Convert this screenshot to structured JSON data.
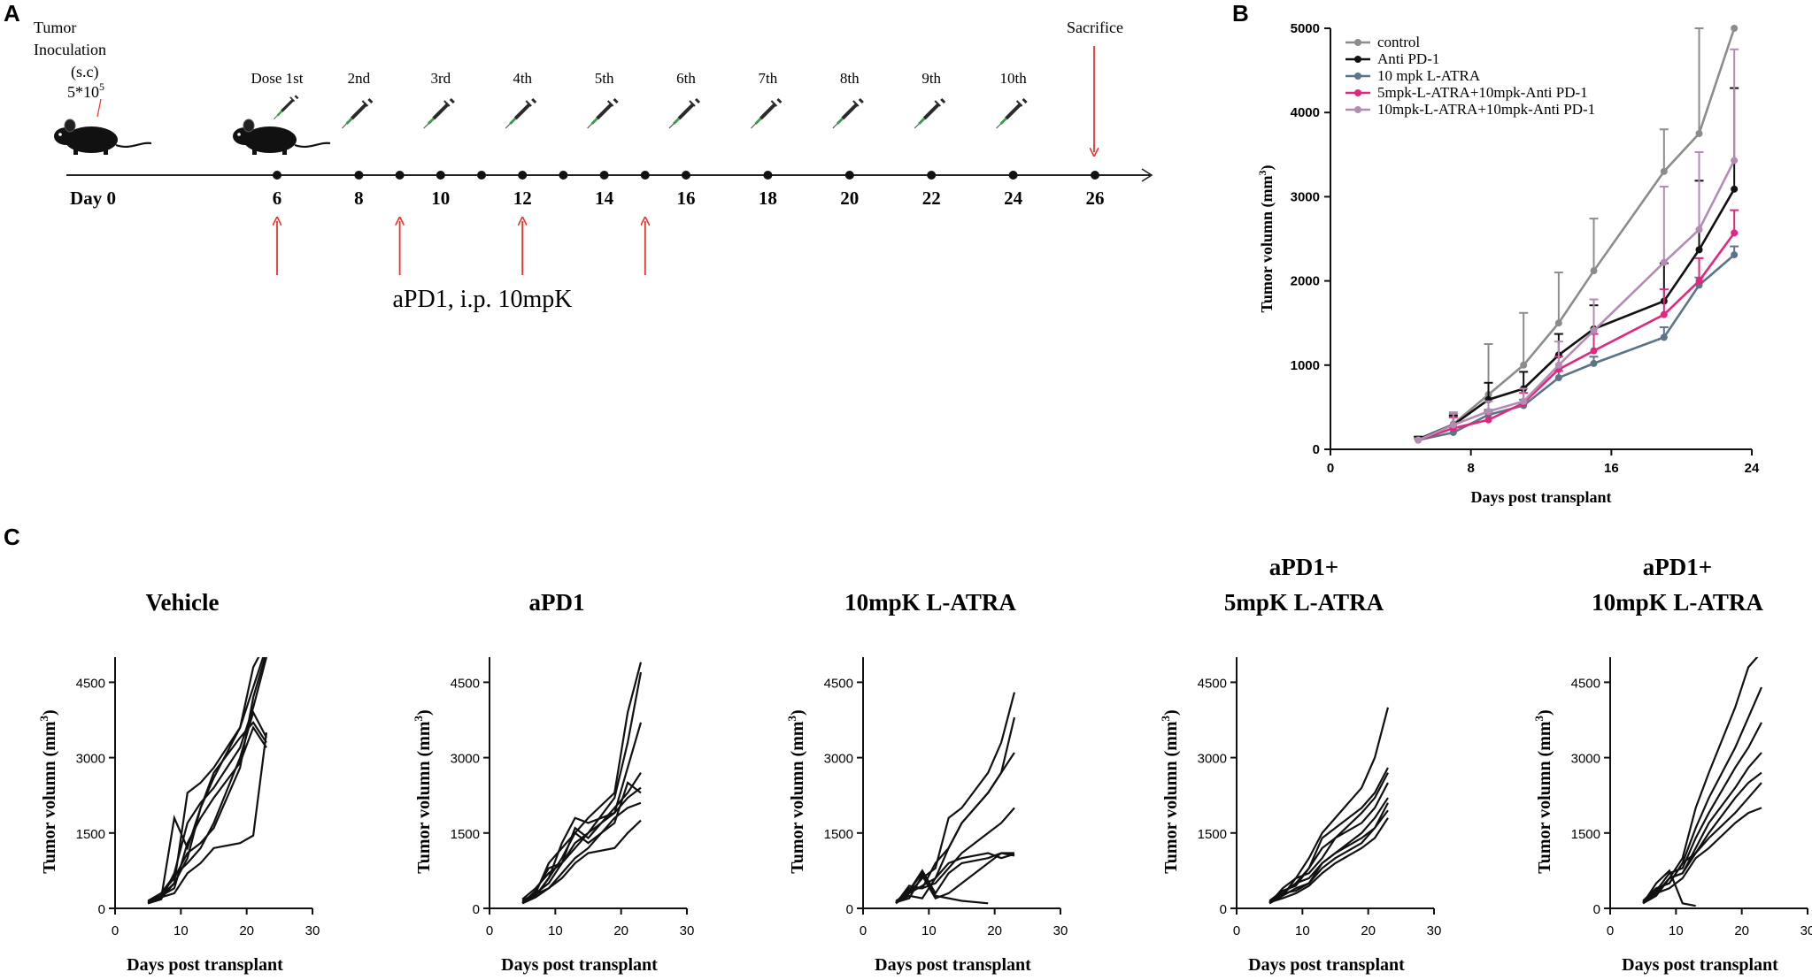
{
  "panel_a": {
    "letter": "A",
    "inoculation": {
      "line1": "Tumor",
      "line2": "Inoculation",
      "line3": "(s.c)",
      "cells": "5*10",
      "cells_exp": "5"
    },
    "sacrifice": "Sacrifice",
    "day0_label": "Day 0",
    "doses": [
      {
        "label": "Dose 1st",
        "day": 6
      },
      {
        "label": "2nd",
        "day": 8
      },
      {
        "label": "3rd",
        "day": 10
      },
      {
        "label": "4th",
        "day": 12
      },
      {
        "label": "5th",
        "day": 14
      },
      {
        "label": "6th",
        "day": 16
      },
      {
        "label": "7th",
        "day": 18
      },
      {
        "label": "8th",
        "day": 20
      },
      {
        "label": "9th",
        "day": 22
      },
      {
        "label": "10th",
        "day": 24
      }
    ],
    "labeled_days": [
      "6",
      "8",
      "10",
      "12",
      "14",
      "16",
      "18",
      "20",
      "22",
      "24",
      "26"
    ],
    "timeline_dots": [
      6,
      8,
      9,
      10,
      11,
      12,
      13,
      14,
      15,
      16,
      18,
      20,
      22,
      24,
      26
    ],
    "apd1_days": [
      6,
      9,
      12,
      15
    ],
    "apd1_label": "aPD1, i.p. 10mpK",
    "arrow_color": "#e8332b"
  },
  "chart_data": [
    {
      "panel": "B",
      "type": "line",
      "xlabel": "Days post transplant",
      "ylabel": "Tumor volumn (mm",
      "ylabel_sup": "3",
      "ylabel_close": ")",
      "xlim": [
        0,
        24
      ],
      "ylim": [
        0,
        5000
      ],
      "xticks": [
        0,
        8,
        16,
        24
      ],
      "yticks": [
        0,
        1000,
        2000,
        3000,
        4000,
        5000
      ],
      "x": [
        5,
        7,
        9,
        11,
        13,
        15,
        19,
        21,
        23
      ],
      "series": [
        {
          "name": "control",
          "color": "#8c8c8c",
          "values": [
            120,
            300,
            650,
            1000,
            1500,
            2120,
            3300,
            3750,
            5000
          ],
          "err": [
            30,
            120,
            600,
            620,
            600,
            620,
            500,
            1250,
            0
          ]
        },
        {
          "name": "Anti PD-1",
          "color": "#111111",
          "values": [
            120,
            290,
            590,
            720,
            1120,
            1430,
            1760,
            2370,
            3090
          ],
          "err": [
            30,
            110,
            200,
            200,
            250,
            280,
            450,
            820,
            1200
          ]
        },
        {
          "name": "10 mpk L-ATRA",
          "color": "#5c7487",
          "values": [
            110,
            200,
            410,
            520,
            850,
            1020,
            1330,
            1950,
            2310
          ],
          "err": [
            20,
            60,
            60,
            70,
            80,
            80,
            120,
            90,
            100
          ]
        },
        {
          "name": "5mpk-L-ATRA+10mpk-Anti PD-1",
          "color": "#e0287f",
          "values": [
            110,
            250,
            350,
            550,
            950,
            1170,
            1600,
            2000,
            2570
          ],
          "err": [
            20,
            130,
            100,
            120,
            150,
            200,
            300,
            270,
            270
          ]
        },
        {
          "name": "10mpk-L-ATRA+10mpk-Anti PD-1",
          "color": "#b38cb4",
          "values": [
            110,
            290,
            450,
            570,
            1000,
            1410,
            2220,
            2610,
            3430
          ],
          "err": [
            20,
            150,
            120,
            150,
            280,
            370,
            900,
            920,
            1320
          ]
        }
      ]
    },
    {
      "panel": "C",
      "type": "line",
      "xlabel": "Days post transplant",
      "ylabel": "Tumor volumn (mm",
      "ylabel_sup": "3",
      "ylabel_close": ")",
      "xlim": [
        0,
        30
      ],
      "ylim": [
        0,
        5000
      ],
      "xticks": [
        0,
        10,
        20,
        30
      ],
      "yticks": [
        0,
        1500,
        3000,
        4500
      ],
      "x": [
        5,
        7,
        9,
        11,
        13,
        15,
        19,
        21,
        23
      ],
      "subplots": [
        {
          "title_lines": [
            "Vehicle"
          ],
          "series": [
            [
              100,
              200,
              1800,
              1200,
              2000,
              2600,
              3600,
              4400,
              5200
            ],
            [
              120,
              250,
              500,
              2300,
              2500,
              2800,
              3600,
              4800,
              5300
            ],
            [
              100,
              180,
              700,
              1700,
              2100,
              2400,
              3200,
              4000,
              5000
            ],
            [
              150,
              300,
              600,
              1100,
              1300,
              1600,
              2800,
              4200,
              5100
            ],
            [
              100,
              250,
              400,
              1300,
              1800,
              2200,
              2900,
              3600,
              3200
            ],
            [
              130,
              300,
              650,
              900,
              1200,
              1700,
              3000,
              3900,
              3400
            ],
            [
              110,
              200,
              500,
              1000,
              2000,
              2700,
              3400,
              3700,
              3300
            ],
            [
              100,
              220,
              300,
              700,
              900,
              1200,
              1300,
              1450,
              3500
            ]
          ]
        },
        {
          "title_lines": [
            "aPD1"
          ],
          "series": [
            [
              120,
              250,
              600,
              1000,
              1500,
              1800,
              2300,
              3900,
              4900
            ],
            [
              150,
              300,
              500,
              900,
              1300,
              1500,
              2200,
              3300,
              4700
            ],
            [
              100,
              350,
              800,
              900,
              1200,
              1500,
              1900,
              2800,
              3700
            ],
            [
              180,
              400,
              700,
              900,
              1600,
              1400,
              2000,
              2300,
              2700
            ],
            [
              100,
              250,
              600,
              1300,
              1800,
              1700,
              1900,
              2200,
              2400
            ],
            [
              130,
              300,
              900,
              1200,
              1500,
              1300,
              1700,
              2500,
              2300
            ],
            [
              120,
              280,
              400,
              700,
              1000,
              1200,
              1800,
              2000,
              2100
            ],
            [
              100,
              220,
              400,
              600,
              900,
              1100,
              1200,
              1500,
              1750
            ]
          ]
        },
        {
          "title_lines": [
            "10mpK L-ATRA"
          ],
          "series": [
            [
              100,
              300,
              600,
              800,
              1800,
              2000,
              2700,
              3300,
              4300
            ],
            [
              120,
              400,
              400,
              900,
              1200,
              1700,
              2300,
              2700,
              3800
            ],
            [
              150,
              300,
              450,
              600,
              1200,
              1700,
              2300,
              2700,
              3100
            ],
            [
              100,
              450,
              400,
              500,
              800,
              1100,
              1500,
              1700,
              2000
            ],
            [
              130,
              350,
              750,
              300,
              700,
              900,
              1000,
              1100,
              1100
            ],
            [
              110,
              250,
              200,
              600,
              900,
              1000,
              1100,
              1000,
              1080
            ],
            [
              120,
              200,
              650,
              200,
              300,
              500,
              900,
              1100,
              1050
            ],
            [
              100,
              350,
              700,
              250,
              200,
              150,
              100,
              null,
              null
            ]
          ]
        },
        {
          "title_lines": [
            "aPD1+",
            "5mpK L-ATRA"
          ],
          "series": [
            [
              100,
              250,
              600,
              1000,
              1500,
              1800,
              2400,
              3000,
              4000
            ],
            [
              120,
              300,
              500,
              800,
              1400,
              1600,
              2000,
              2300,
              2800
            ],
            [
              150,
              350,
              450,
              800,
              1200,
              1400,
              1900,
              2200,
              2700
            ],
            [
              100,
              400,
              600,
              700,
              1000,
              1400,
              1700,
              2000,
              2500
            ],
            [
              130,
              300,
              500,
              600,
              900,
              1100,
              1500,
              1800,
              2200
            ],
            [
              100,
              250,
              400,
              500,
              900,
              1100,
              1400,
              1600,
              2100
            ],
            [
              110,
              300,
              350,
              500,
              800,
              1000,
              1300,
              1600,
              1950
            ],
            [
              120,
              200,
              300,
              450,
              700,
              900,
              1200,
              1400,
              1800
            ]
          ]
        },
        {
          "title_lines": [
            "aPD1+",
            "10mpK L-ATRA"
          ],
          "series": [
            [
              100,
              300,
              600,
              1000,
              2000,
              2700,
              4000,
              4800,
              5100
            ],
            [
              150,
              400,
              500,
              900,
              1600,
              2200,
              3200,
              3800,
              4400
            ],
            [
              100,
              350,
              700,
              800,
              1400,
              1900,
              2800,
              3200,
              3700
            ],
            [
              120,
              300,
              600,
              700,
              1200,
              1700,
              2400,
              2800,
              3100
            ],
            [
              130,
              400,
              500,
              900,
              1100,
              1500,
              2200,
              2500,
              2700
            ],
            [
              100,
              250,
              600,
              700,
              1100,
              1400,
              1900,
              2200,
              2500
            ],
            [
              110,
              300,
              400,
              600,
              1000,
              1200,
              1700,
              1900,
              2000
            ],
            [
              100,
              500,
              750,
              100,
              50,
              null,
              null,
              null,
              null
            ]
          ]
        }
      ]
    }
  ]
}
